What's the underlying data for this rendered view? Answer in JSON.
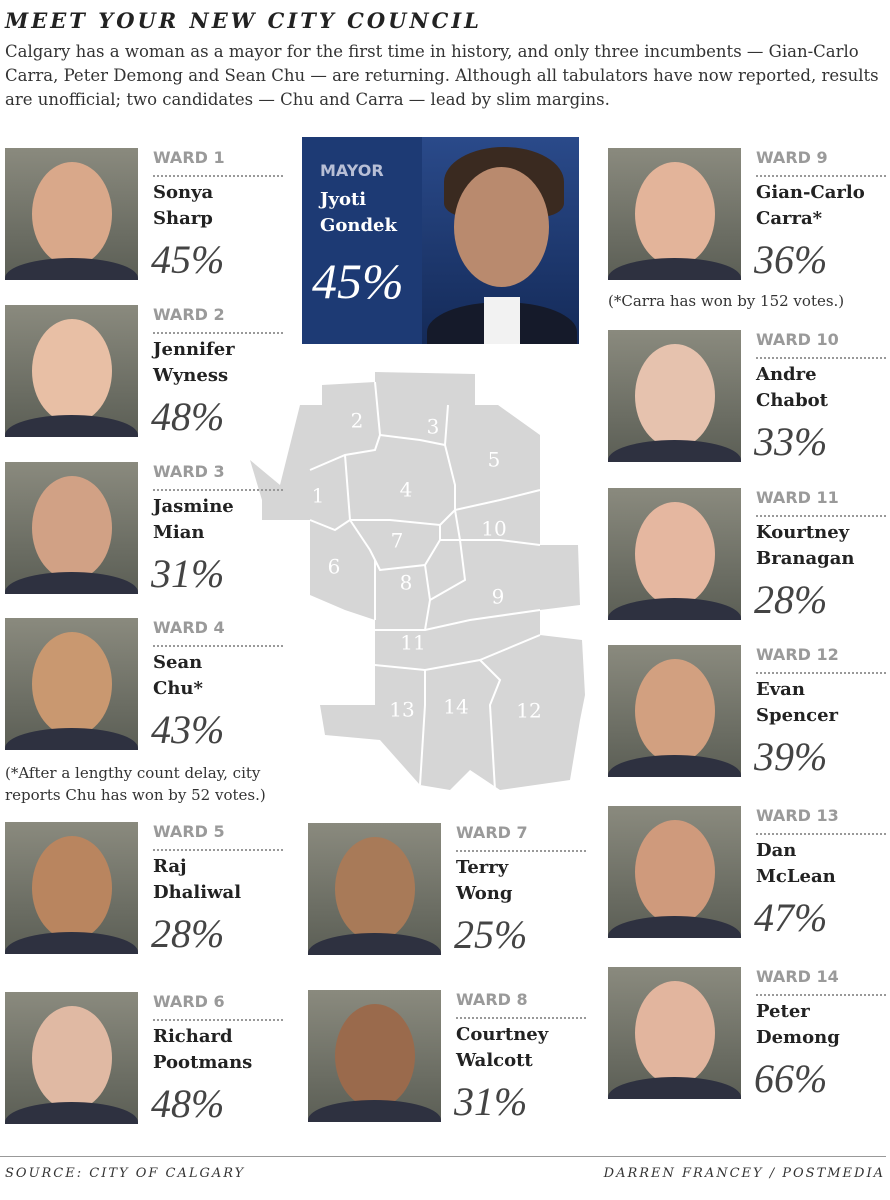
{
  "header": {
    "title": "MEET YOUR NEW CITY COUNCIL",
    "intro": "Calgary has a woman as a mayor for the first time in history, and only three incumbents — Gian-Carlo Carra, Peter Demong and Sean Chu — are returning. Although all tabulators have now reported, results are unofficial; two candidates — Chu and Carra — lead by slim margins."
  },
  "mayor": {
    "label": "MAYOR",
    "name": [
      "Jyoti",
      "Gondek"
    ],
    "percent": "45%"
  },
  "wards": [
    {
      "ward": "WARD 1",
      "name": [
        "Sonya",
        "Sharp"
      ],
      "percent": "45%"
    },
    {
      "ward": "WARD 2",
      "name": [
        "Jennifer",
        "Wyness"
      ],
      "percent": "48%"
    },
    {
      "ward": "WARD 3",
      "name": [
        "Jasmine",
        "Mian"
      ],
      "percent": "31%"
    },
    {
      "ward": "WARD 4",
      "name": [
        "Sean",
        "Chu*"
      ],
      "percent": "43%",
      "note": "(*After a lengthy count delay, city reports Chu has won by 52 votes.)"
    },
    {
      "ward": "WARD 5",
      "name": [
        "Raj",
        "Dhaliwal"
      ],
      "percent": "28%"
    },
    {
      "ward": "WARD 6",
      "name": [
        "Richard",
        "Pootmans"
      ],
      "percent": "48%"
    },
    {
      "ward": "WARD 7",
      "name": [
        "Terry",
        "Wong"
      ],
      "percent": "25%"
    },
    {
      "ward": "WARD 8",
      "name": [
        "Courtney",
        "Walcott"
      ],
      "percent": "31%"
    },
    {
      "ward": "WARD 9",
      "name": [
        "Gian-Carlo",
        "Carra*"
      ],
      "percent": "36%",
      "note": "(*Carra has won by 152 votes.)"
    },
    {
      "ward": "WARD 10",
      "name": [
        "Andre",
        "Chabot"
      ],
      "percent": "33%"
    },
    {
      "ward": "WARD 11",
      "name": [
        "Kourtney",
        "Branagan"
      ],
      "percent": "28%"
    },
    {
      "ward": "WARD 12",
      "name": [
        "Evan",
        "Spencer"
      ],
      "percent": "39%"
    },
    {
      "ward": "WARD 13",
      "name": [
        "Dan",
        "McLean"
      ],
      "percent": "47%"
    },
    {
      "ward": "WARD 14",
      "name": [
        "Peter",
        "Demong"
      ],
      "percent": "66%"
    }
  ],
  "map": {
    "labels": [
      "1",
      "2",
      "3",
      "4",
      "5",
      "6",
      "7",
      "8",
      "9",
      "10",
      "11",
      "12",
      "13",
      "14"
    ]
  },
  "footer": {
    "source": "SOURCE: CITY OF CALGARY",
    "credit": "DARREN FRANCEY / POSTMEDIA"
  }
}
